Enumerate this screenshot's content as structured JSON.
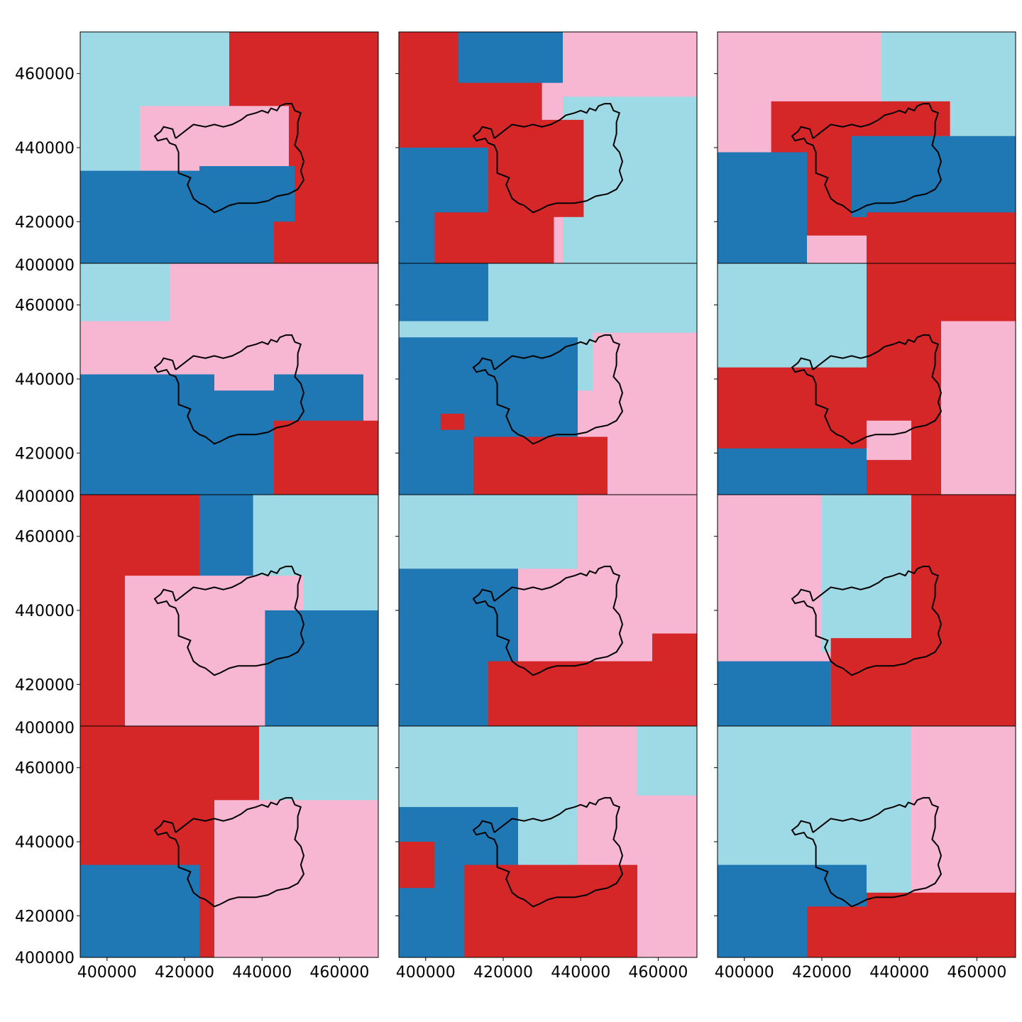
{
  "figure": {
    "layout": {
      "rows": 4,
      "cols": 3
    },
    "class_colors": {
      "dark_blue": "#1f77b4",
      "red": "#d62728",
      "pink": "#f7b6d2",
      "light_blue": "#9edae5"
    },
    "boundary_color": "#000000",
    "x_ticks": [
      "400000",
      "420000",
      "440000",
      "460000"
    ],
    "y_ticks": [
      "400000",
      "420000",
      "440000",
      "460000"
    ],
    "panels": [
      {
        "row": 0,
        "col": 0,
        "cells": [
          {
            "c": "light_blue",
            "x0": 0,
            "y0": 0,
            "x1": 1,
            "y1": 0.6
          },
          {
            "c": "red",
            "x0": 0.5,
            "y0": 0,
            "x1": 1,
            "y1": 1
          },
          {
            "c": "pink",
            "x0": 0.2,
            "y0": 0.32,
            "x1": 0.7,
            "y1": 0.72
          },
          {
            "c": "dark_blue",
            "x0": 0,
            "y0": 0.6,
            "x1": 0.65,
            "y1": 1
          },
          {
            "c": "dark_blue",
            "x0": 0.4,
            "y0": 0.58,
            "x1": 0.72,
            "y1": 0.82
          }
        ]
      },
      {
        "row": 0,
        "col": 1,
        "cells": [
          {
            "c": "pink",
            "x0": 0,
            "y0": 0,
            "x1": 1,
            "y1": 1
          },
          {
            "c": "red",
            "x0": 0,
            "y0": 0,
            "x1": 0.48,
            "y1": 0.55
          },
          {
            "c": "dark_blue",
            "x0": 0.2,
            "y0": 0,
            "x1": 0.55,
            "y1": 0.22
          },
          {
            "c": "light_blue",
            "x0": 0.55,
            "y0": 0.28,
            "x1": 1,
            "y1": 1
          },
          {
            "c": "red",
            "x0": 0.25,
            "y0": 0.38,
            "x1": 0.62,
            "y1": 0.8
          },
          {
            "c": "dark_blue",
            "x0": 0,
            "y0": 0.5,
            "x1": 0.3,
            "y1": 1
          },
          {
            "c": "red",
            "x0": 0.12,
            "y0": 0.78,
            "x1": 0.52,
            "y1": 1
          }
        ]
      },
      {
        "row": 0,
        "col": 2,
        "cells": [
          {
            "c": "pink",
            "x0": 0,
            "y0": 0,
            "x1": 1,
            "y1": 0.55
          },
          {
            "c": "light_blue",
            "x0": 0.55,
            "y0": 0,
            "x1": 1,
            "y1": 0.45
          },
          {
            "c": "red",
            "x0": 0.18,
            "y0": 0.3,
            "x1": 0.78,
            "y1": 0.88
          },
          {
            "c": "dark_blue",
            "x0": 0,
            "y0": 0.52,
            "x1": 0.3,
            "y1": 1
          },
          {
            "c": "dark_blue",
            "x0": 0.45,
            "y0": 0.45,
            "x1": 1,
            "y1": 0.8
          },
          {
            "c": "red",
            "x0": 0.5,
            "y0": 0.78,
            "x1": 1,
            "y1": 1
          }
        ]
      },
      {
        "row": 1,
        "col": 0,
        "cells": [
          {
            "c": "pink",
            "x0": 0,
            "y0": 0,
            "x1": 1,
            "y1": 0.7
          },
          {
            "c": "light_blue",
            "x0": 0,
            "y0": 0,
            "x1": 0.3,
            "y1": 0.25
          },
          {
            "c": "dark_blue",
            "x0": 0,
            "y0": 0.48,
            "x1": 0.95,
            "y1": 1
          },
          {
            "c": "pink",
            "x0": 0.45,
            "y0": 0.38,
            "x1": 0.65,
            "y1": 0.55
          },
          {
            "c": "red",
            "x0": 0.65,
            "y0": 0.68,
            "x1": 1,
            "y1": 1
          }
        ]
      },
      {
        "row": 1,
        "col": 1,
        "cells": [
          {
            "c": "light_blue",
            "x0": 0,
            "y0": 0,
            "x1": 1,
            "y1": 0.55
          },
          {
            "c": "dark_blue",
            "x0": 0,
            "y0": 0,
            "x1": 0.3,
            "y1": 0.25
          },
          {
            "c": "dark_blue",
            "x0": 0,
            "y0": 0.32,
            "x1": 0.6,
            "y1": 1
          },
          {
            "c": "pink",
            "x0": 0.65,
            "y0": 0.3,
            "x1": 1,
            "y1": 1
          },
          {
            "c": "red",
            "x0": 0.25,
            "y0": 0.75,
            "x1": 0.7,
            "y1": 1
          },
          {
            "c": "red",
            "x0": 0.14,
            "y0": 0.65,
            "x1": 0.22,
            "y1": 0.72
          }
        ]
      },
      {
        "row": 1,
        "col": 2,
        "cells": [
          {
            "c": "light_blue",
            "x0": 0,
            "y0": 0,
            "x1": 0.6,
            "y1": 0.55
          },
          {
            "c": "red",
            "x0": 0.5,
            "y0": 0,
            "x1": 1,
            "y1": 1
          },
          {
            "c": "pink",
            "x0": 0.75,
            "y0": 0.25,
            "x1": 1,
            "y1": 1
          },
          {
            "c": "red",
            "x0": 0,
            "y0": 0.45,
            "x1": 0.7,
            "y1": 0.9
          },
          {
            "c": "pink",
            "x0": 0.5,
            "y0": 0.68,
            "x1": 0.65,
            "y1": 0.85
          },
          {
            "c": "dark_blue",
            "x0": 0,
            "y0": 0.8,
            "x1": 0.5,
            "y1": 1
          }
        ]
      },
      {
        "row": 2,
        "col": 0,
        "cells": [
          {
            "c": "red",
            "x0": 0,
            "y0": 0,
            "x1": 0.45,
            "y1": 1
          },
          {
            "c": "light_blue",
            "x0": 0.5,
            "y0": 0,
            "x1": 1,
            "y1": 0.55
          },
          {
            "c": "dark_blue",
            "x0": 0.4,
            "y0": 0,
            "x1": 0.58,
            "y1": 0.4
          },
          {
            "c": "pink",
            "x0": 0.15,
            "y0": 0.35,
            "x1": 0.75,
            "y1": 1
          },
          {
            "c": "dark_blue",
            "x0": 0.62,
            "y0": 0.5,
            "x1": 1,
            "y1": 1
          }
        ]
      },
      {
        "row": 2,
        "col": 1,
        "cells": [
          {
            "c": "pink",
            "x0": 0,
            "y0": 0,
            "x1": 1,
            "y1": 1
          },
          {
            "c": "light_blue",
            "x0": 0,
            "y0": 0,
            "x1": 0.6,
            "y1": 0.32
          },
          {
            "c": "dark_blue",
            "x0": 0,
            "y0": 0.32,
            "x1": 0.4,
            "y1": 1
          },
          {
            "c": "red",
            "x0": 0.3,
            "y0": 0.72,
            "x1": 1,
            "y1": 1
          },
          {
            "c": "red",
            "x0": 0.85,
            "y0": 0.6,
            "x1": 1,
            "y1": 0.8
          }
        ]
      },
      {
        "row": 2,
        "col": 2,
        "cells": [
          {
            "c": "pink",
            "x0": 0,
            "y0": 0,
            "x1": 1,
            "y1": 1
          },
          {
            "c": "light_blue",
            "x0": 0.35,
            "y0": 0,
            "x1": 0.85,
            "y1": 0.68
          },
          {
            "c": "red",
            "x0": 0.65,
            "y0": 0,
            "x1": 1,
            "y1": 1
          },
          {
            "c": "red",
            "x0": 0.38,
            "y0": 0.62,
            "x1": 1,
            "y1": 1
          },
          {
            "c": "dark_blue",
            "x0": 0,
            "y0": 0.72,
            "x1": 0.38,
            "y1": 1
          }
        ]
      },
      {
        "row": 3,
        "col": 0,
        "cells": [
          {
            "c": "red",
            "x0": 0,
            "y0": 0,
            "x1": 0.7,
            "y1": 1
          },
          {
            "c": "light_blue",
            "x0": 0.6,
            "y0": 0,
            "x1": 1,
            "y1": 0.5
          },
          {
            "c": "pink",
            "x0": 0.45,
            "y0": 0.32,
            "x1": 1,
            "y1": 1
          },
          {
            "c": "dark_blue",
            "x0": 0,
            "y0": 0.6,
            "x1": 0.4,
            "y1": 1
          }
        ]
      },
      {
        "row": 3,
        "col": 1,
        "cells": [
          {
            "c": "pink",
            "x0": 0,
            "y0": 0,
            "x1": 1,
            "y1": 1
          },
          {
            "c": "light_blue",
            "x0": 0,
            "y0": 0,
            "x1": 0.6,
            "y1": 0.6
          },
          {
            "c": "light_blue",
            "x0": 0.8,
            "y0": 0,
            "x1": 1,
            "y1": 0.3
          },
          {
            "c": "dark_blue",
            "x0": 0,
            "y0": 0.35,
            "x1": 0.4,
            "y1": 1
          },
          {
            "c": "red",
            "x0": 0,
            "y0": 0.5,
            "x1": 0.12,
            "y1": 0.7
          },
          {
            "c": "red",
            "x0": 0.22,
            "y0": 0.6,
            "x1": 0.8,
            "y1": 1
          }
        ]
      },
      {
        "row": 3,
        "col": 2,
        "cells": [
          {
            "c": "pink",
            "x0": 0,
            "y0": 0,
            "x1": 1,
            "y1": 1
          },
          {
            "c": "light_blue",
            "x0": 0,
            "y0": 0,
            "x1": 0.65,
            "y1": 0.75
          },
          {
            "c": "dark_blue",
            "x0": 0,
            "y0": 0.6,
            "x1": 0.5,
            "y1": 1
          },
          {
            "c": "red",
            "x0": 0.3,
            "y0": 0.78,
            "x1": 1,
            "y1": 1
          },
          {
            "c": "red",
            "x0": 0.5,
            "y0": 0.72,
            "x1": 1,
            "y1": 0.9
          }
        ]
      }
    ]
  }
}
